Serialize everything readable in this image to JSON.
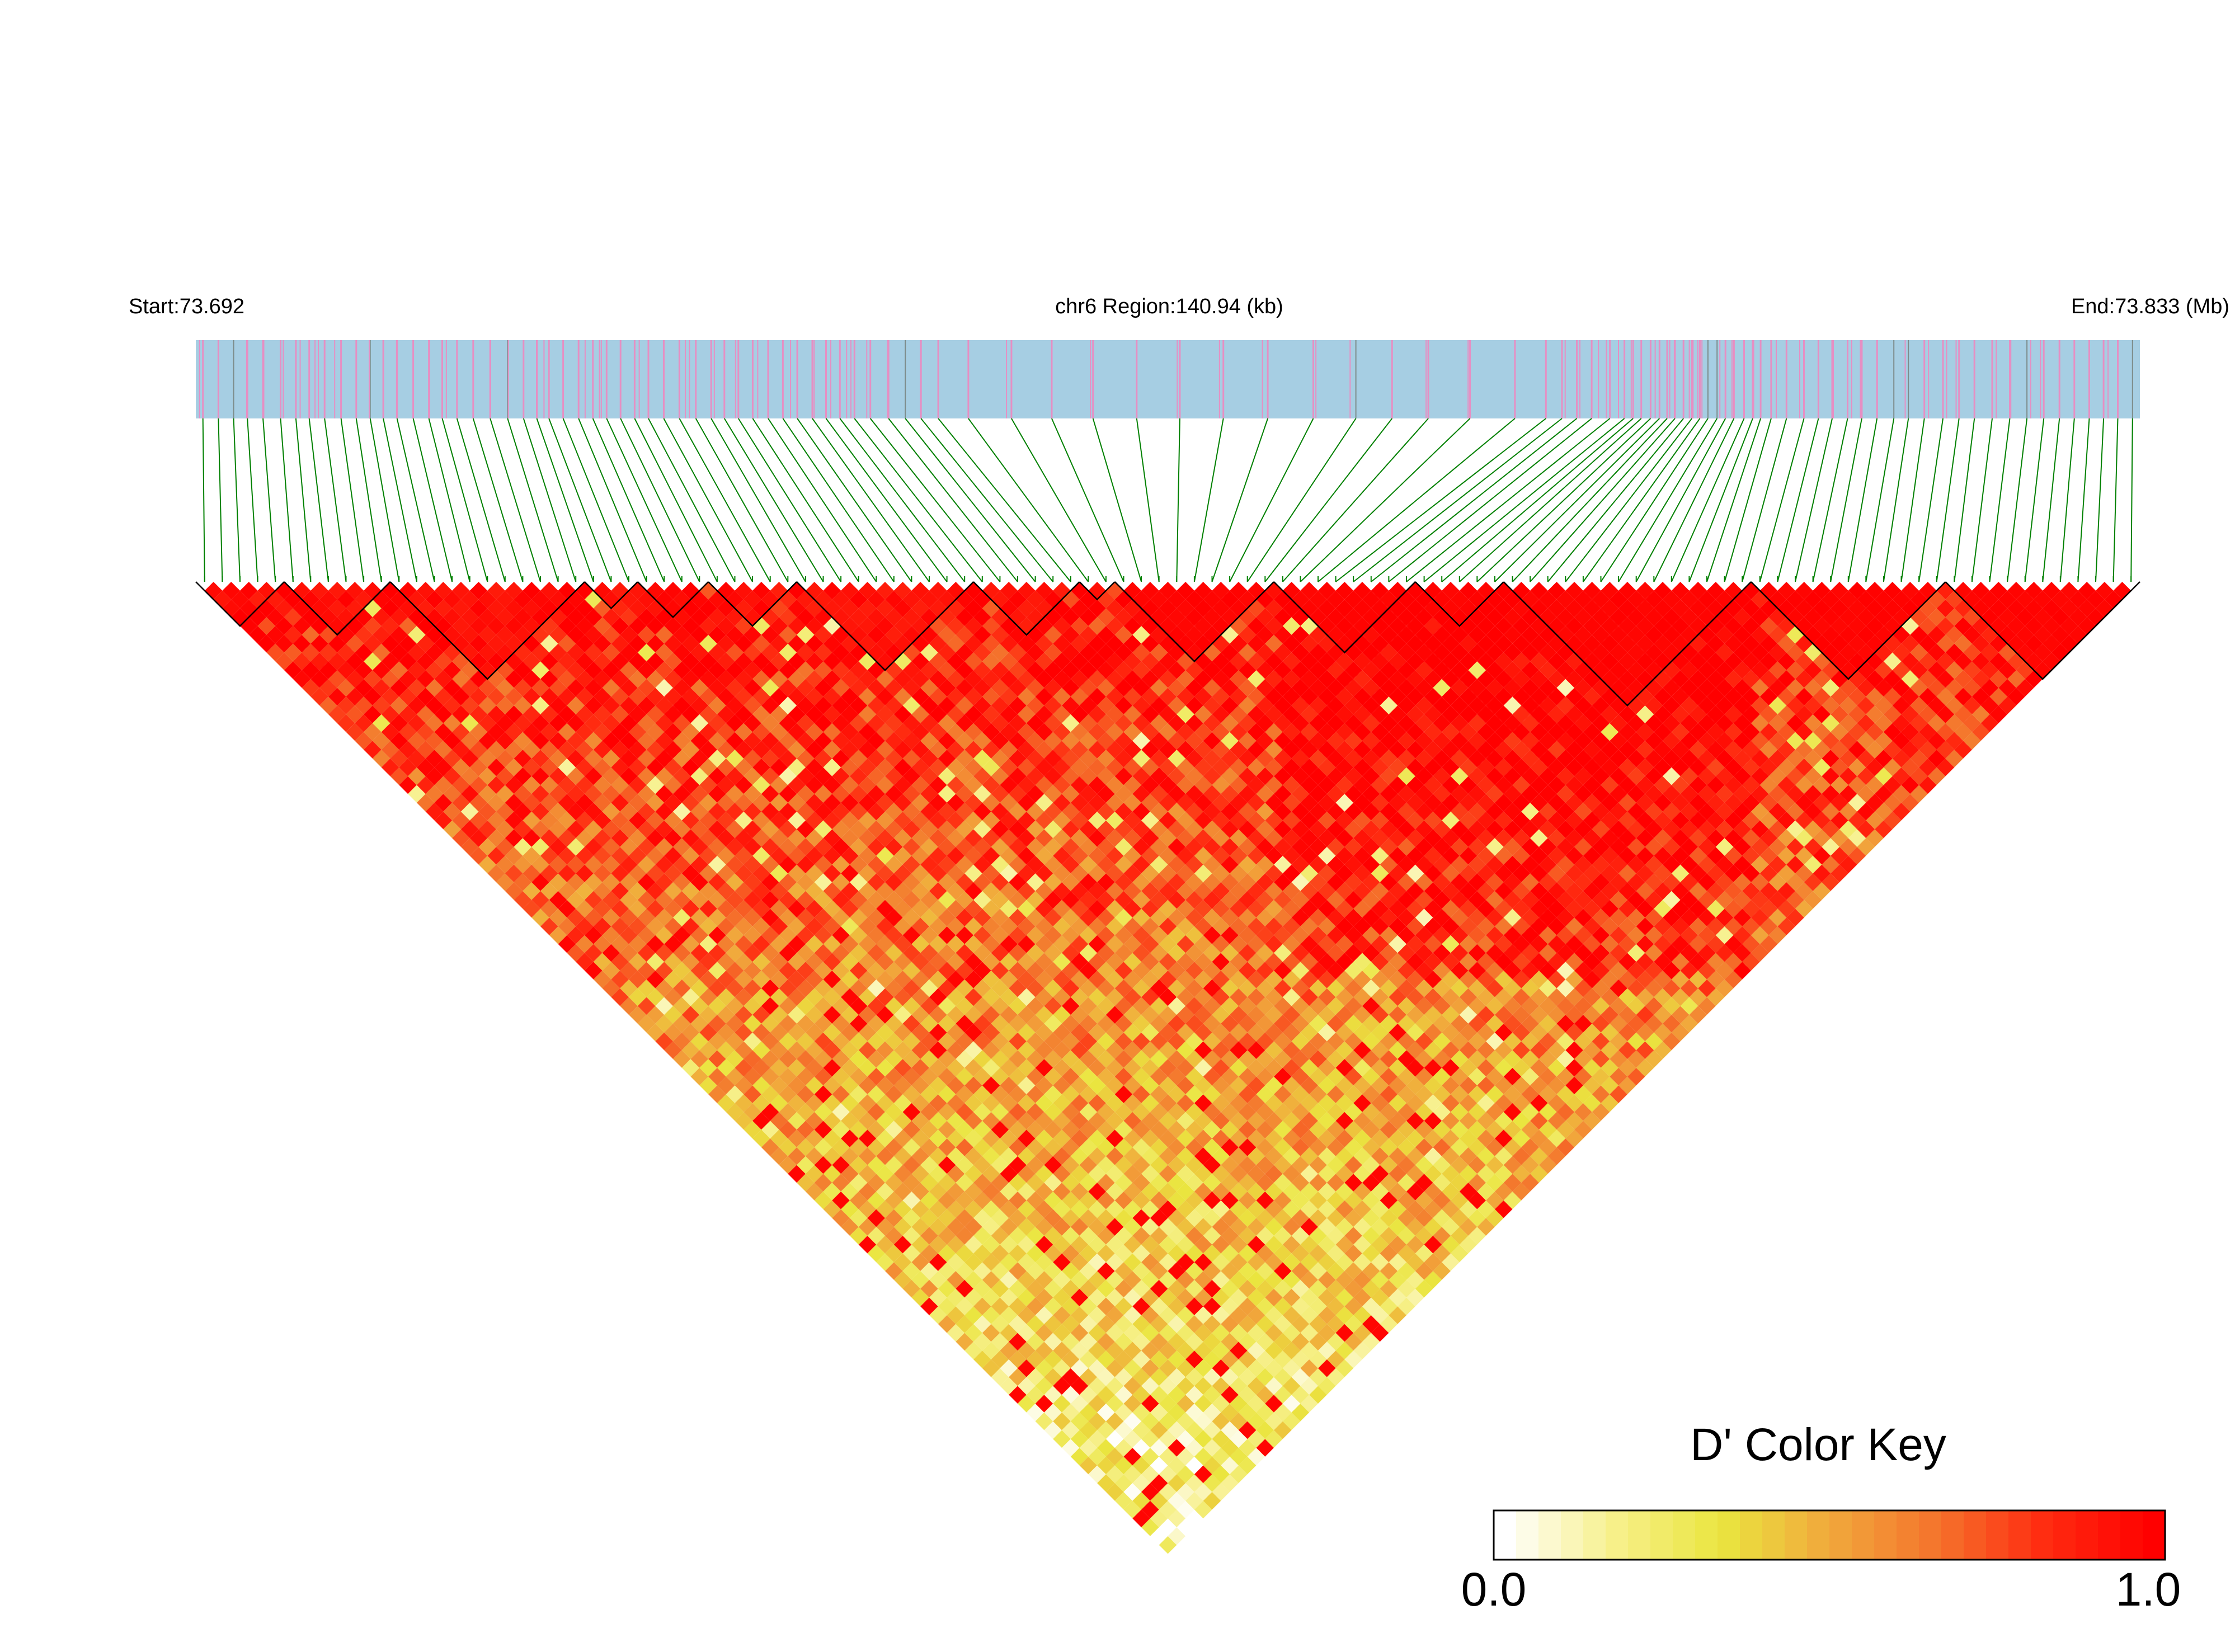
{
  "chart_data": {
    "type": "heatmap",
    "subtype": "linkage-disequilibrium-triangle",
    "header": {
      "start_label": "Start:73.692",
      "region_label": "chr6 Region:140.94 (kb)",
      "end_label": "End:73.833 (Mb)"
    },
    "region": {
      "chromosome": "chr6",
      "start_mb": 73.692,
      "end_mb": 73.833,
      "length_kb": 140.94
    },
    "metric": "D'",
    "color_key": {
      "title": "D' Color Key",
      "min_label": "0.0",
      "max_label": "1.0",
      "range": [
        0.0,
        1.0
      ],
      "colors": [
        "#ffffff",
        "#f7f08c",
        "#eae53f",
        "#f1a83c",
        "#f4732c",
        "#ff2a10",
        "#ff0000"
      ]
    },
    "track_colors": {
      "background": "#a6cee3",
      "snp_marks": "#e68fc3",
      "dense_marks": "#7d8c8a",
      "connectors": "#008000"
    },
    "blocks_approx_fraction_of_region": [
      [
        0.0,
        0.045
      ],
      [
        0.045,
        0.1
      ],
      [
        0.1,
        0.2
      ],
      [
        0.2,
        0.23
      ],
      [
        0.23,
        0.26
      ],
      [
        0.26,
        0.31
      ],
      [
        0.31,
        0.4
      ],
      [
        0.4,
        0.45
      ],
      [
        0.45,
        0.47
      ],
      [
        0.47,
        0.55
      ],
      [
        0.55,
        0.63
      ],
      [
        0.63,
        0.67
      ],
      [
        0.67,
        0.8
      ],
      [
        0.8,
        0.9
      ],
      [
        0.9,
        1.0
      ]
    ]
  }
}
